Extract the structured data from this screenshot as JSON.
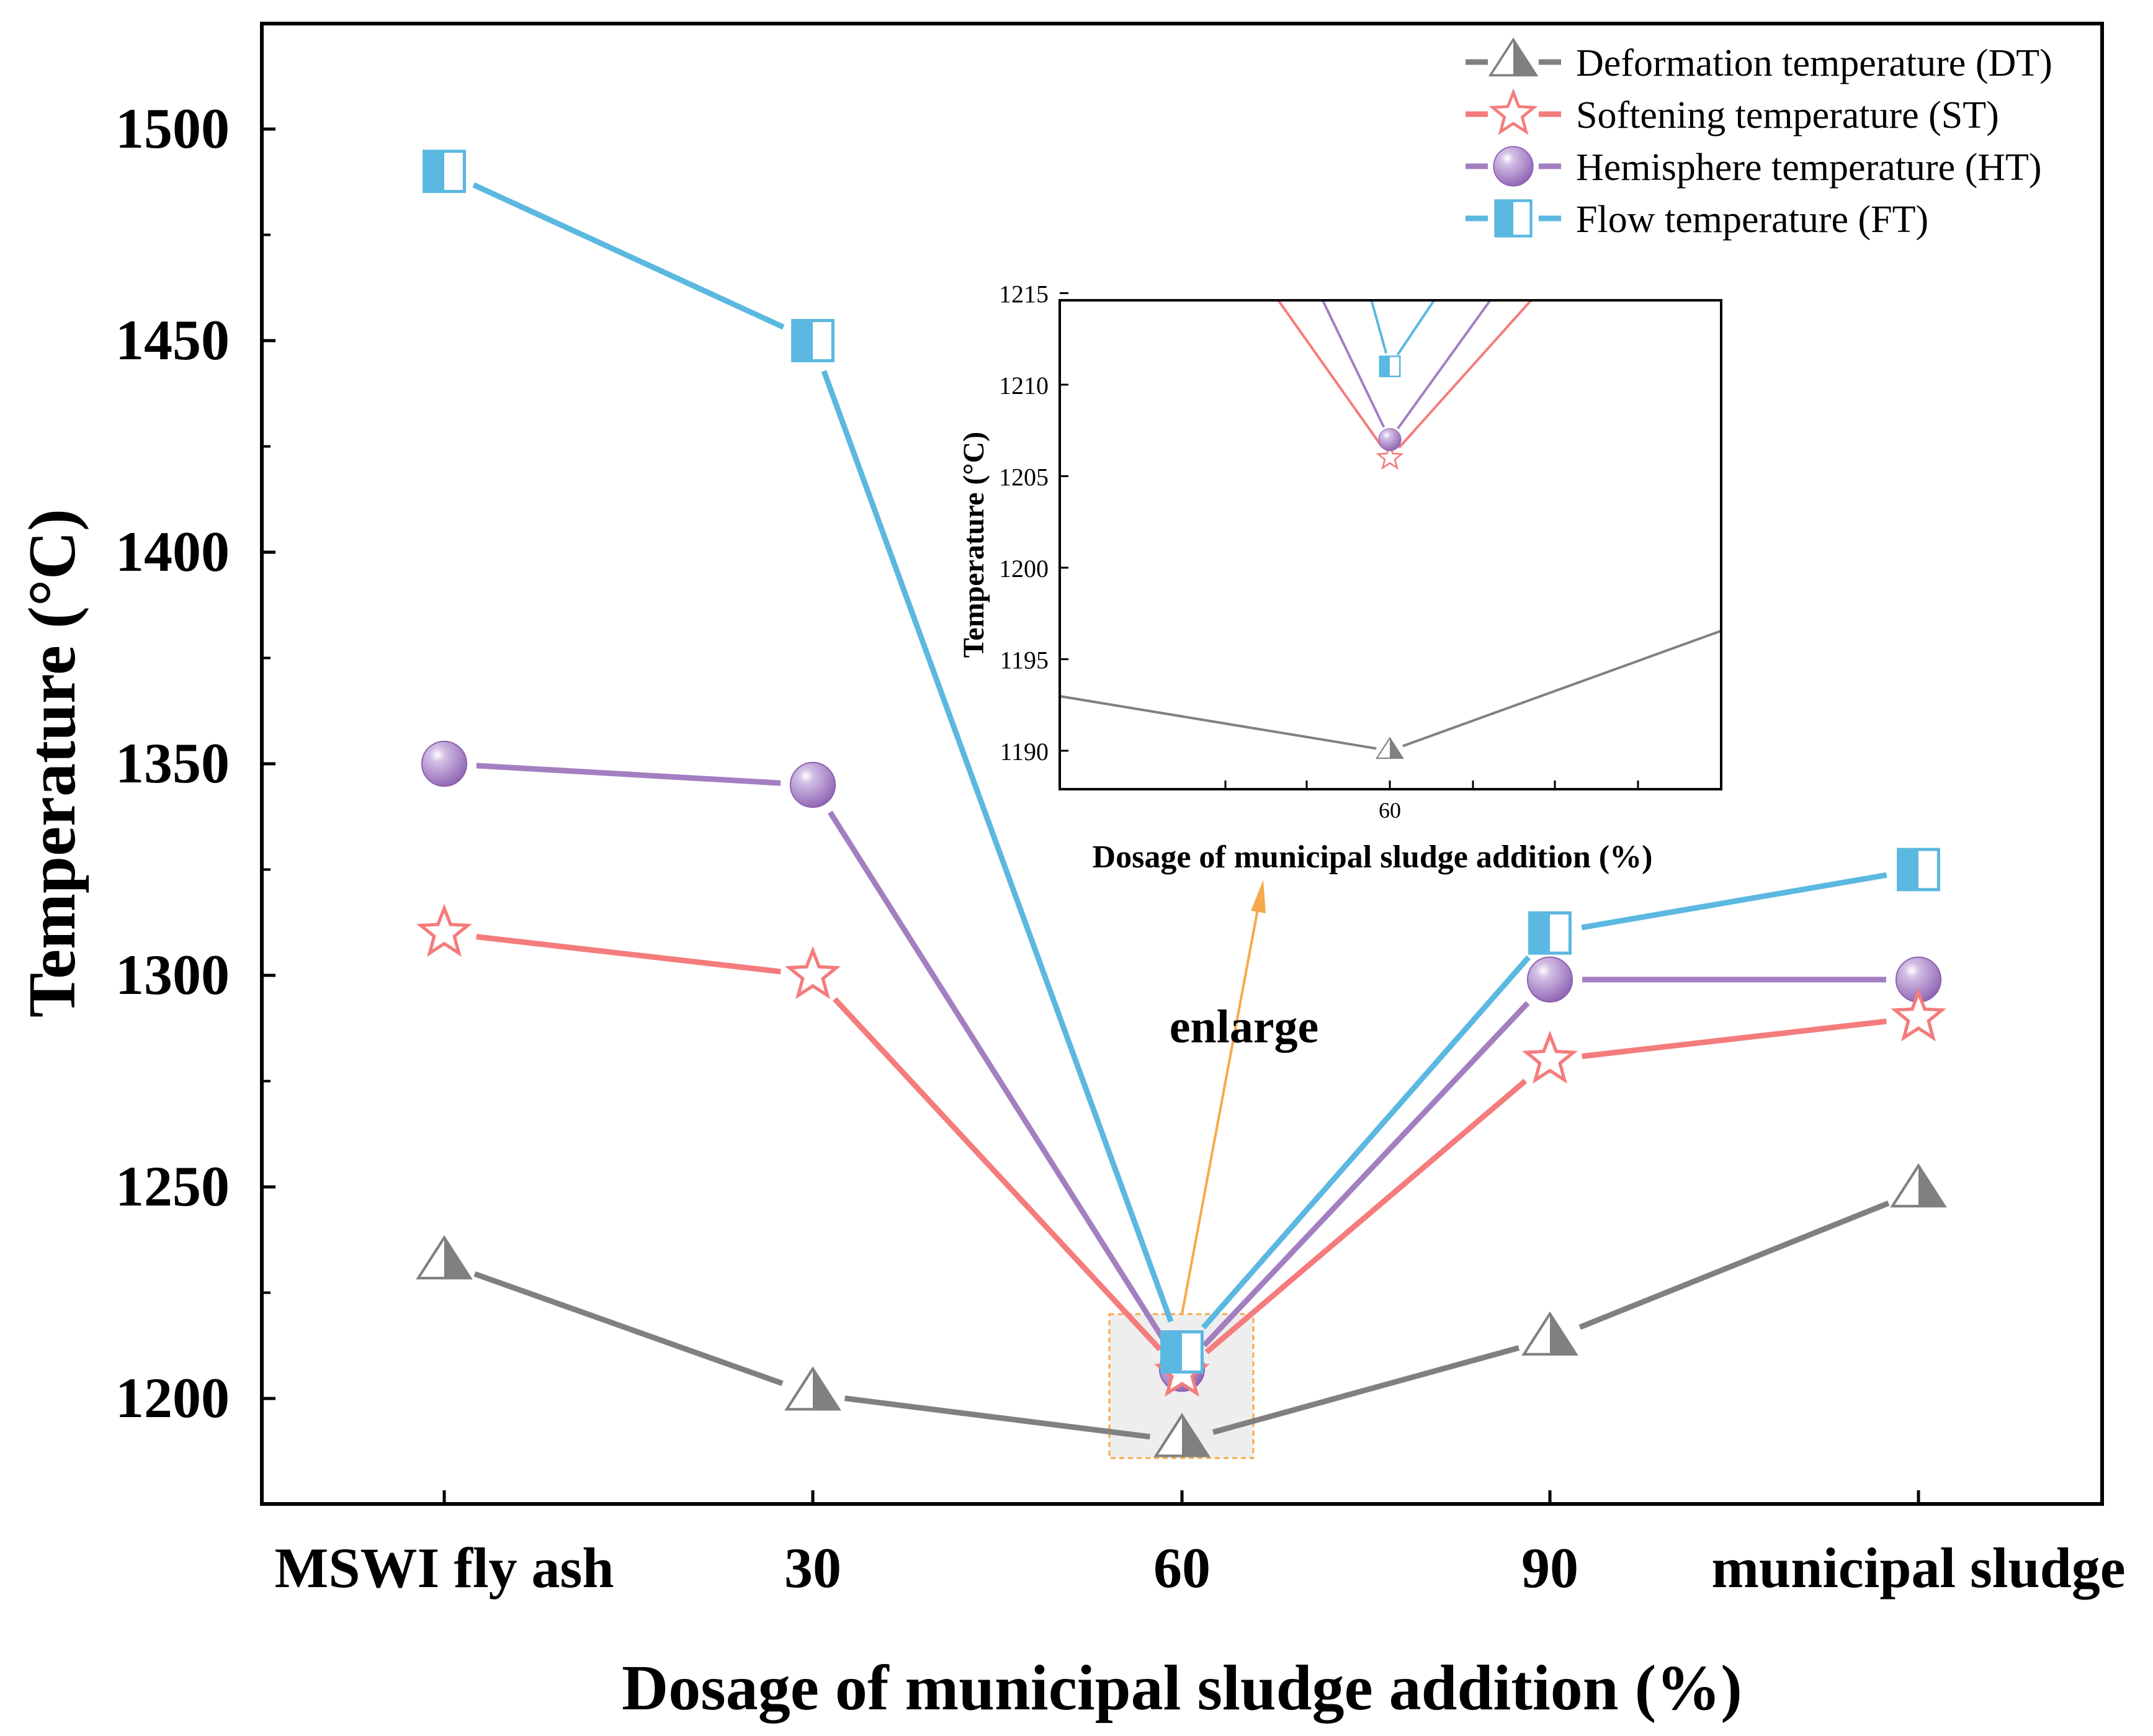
{
  "colors": {
    "dt": "#808080",
    "st": "#f47c7c",
    "ht": "#a37fc1",
    "ft": "#5bb8e0",
    "arrow": "#f5a94a",
    "zoom_box": "#eeeeee",
    "zoom_box_border": "#f5a94a"
  },
  "chart_data": [
    {
      "type": "line",
      "title": "",
      "xlabel": "Dosage of municipal sludge addition (%)",
      "ylabel": "Temperature (°C)",
      "categories": [
        "MSWI fly ash",
        "30",
        "60",
        "90",
        "municipal sludge"
      ],
      "ylim": [
        1174,
        1524
      ],
      "yticks": [
        1200,
        1250,
        1300,
        1350,
        1400,
        1450,
        1500
      ],
      "grid": false,
      "legend": "top-right",
      "series": [
        {
          "key": "dt",
          "name": "Deformation temperature (DT)",
          "marker": "triangle",
          "values": [
            1232,
            1201,
            1190,
            1214,
            1249
          ]
        },
        {
          "key": "st",
          "name": "Softening temperature (ST)",
          "marker": "star",
          "values": [
            1310,
            1300,
            1206,
            1280,
            1290
          ]
        },
        {
          "key": "ht",
          "name": "Hemisphere temperature (HT)",
          "marker": "sphere",
          "values": [
            1350,
            1345,
            1207,
            1299,
            1299
          ]
        },
        {
          "key": "ft",
          "name": "Flow temperature (FT)",
          "marker": "half-square",
          "values": [
            1490,
            1450,
            1211,
            1310,
            1325
          ]
        }
      ],
      "annotation": "enlarge"
    },
    {
      "type": "line",
      "title": "",
      "xlabel": "Dosage of municipal sludge addition (%)",
      "ylabel": "Temperature (°C)",
      "categories": [
        "60"
      ],
      "ylim": [
        1188,
        1215
      ],
      "yticks": [
        1190,
        1195,
        1200,
        1205,
        1210,
        1215
      ],
      "grid": false
    }
  ]
}
